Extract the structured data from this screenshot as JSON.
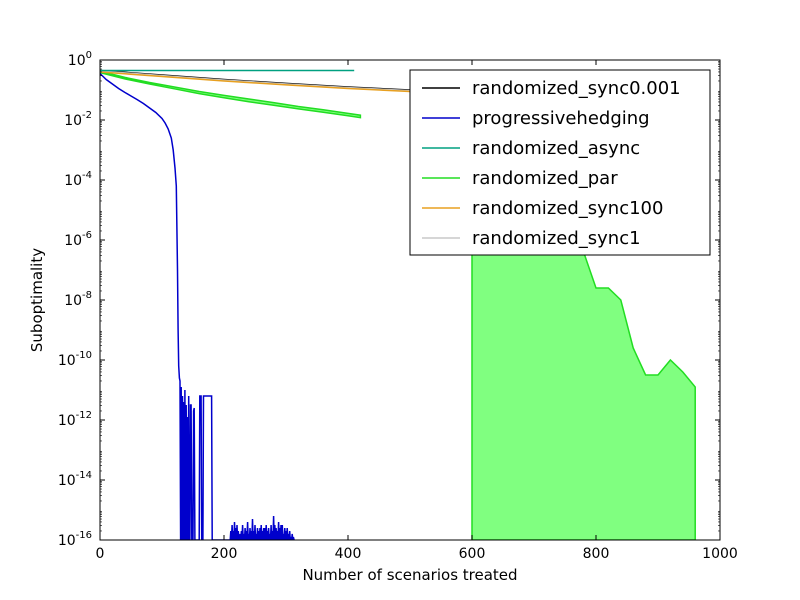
{
  "chart_data": {
    "type": "line",
    "xlabel": "Number of scenarios treated",
    "ylabel": "Suboptimality",
    "xlim": [
      0,
      1000
    ],
    "ylim_log10": [
      -16,
      0
    ],
    "yscale": "log",
    "grid": false,
    "legend_placement": "top-right",
    "x_ticks": [
      0,
      200,
      400,
      600,
      800,
      1000
    ],
    "x_tick_labels": [
      "0",
      "200",
      "400",
      "600",
      "800",
      "1000"
    ],
    "y_tick_exponents": [
      0,
      -2,
      -4,
      -6,
      -8,
      -10,
      -12,
      -14,
      -16
    ],
    "y_tick_base": "10",
    "y_tick_exp_labels": [
      "0",
      "-2",
      "-4",
      "-6",
      "-8",
      "-10",
      "-12",
      "-14",
      "-16"
    ],
    "legend": [
      {
        "label": "randomized_sync0.001",
        "color": "#000000"
      },
      {
        "label": "progressivehedging",
        "color": "#0000cc"
      },
      {
        "label": "randomized_async",
        "color": "#00a080"
      },
      {
        "label": "randomized_par",
        "color": "#22dd22"
      },
      {
        "label": "randomized_sync100",
        "color": "#e8a020"
      },
      {
        "label": "randomized_sync1",
        "color": "#c8c8c8"
      }
    ],
    "series": [
      {
        "name": "randomized_sync0.001",
        "color": "#000000",
        "x": [
          0,
          100,
          200,
          300,
          400,
          500
        ],
        "log10y": [
          -0.35,
          -0.5,
          -0.65,
          -0.78,
          -0.9,
          -1.0
        ]
      },
      {
        "name": "randomized_sync1",
        "color": "#c8c8c8",
        "x": [
          0,
          100,
          200,
          300,
          400,
          500
        ],
        "log10y": [
          -0.37,
          -0.52,
          -0.67,
          -0.8,
          -0.92,
          -1.02
        ]
      },
      {
        "name": "randomized_sync100",
        "color": "#e8a020",
        "x": [
          0,
          100,
          200,
          300,
          400,
          500
        ],
        "log10y": [
          -0.4,
          -0.55,
          -0.7,
          -0.83,
          -0.95,
          -1.05
        ]
      },
      {
        "name": "randomized_async",
        "color": "#00a080",
        "x": [
          0,
          410
        ],
        "log10y": [
          -0.35,
          -0.35
        ]
      },
      {
        "name": "progressivehedging",
        "color": "#0000cc",
        "x": [
          0,
          10,
          20,
          30,
          40,
          50,
          60,
          70,
          80,
          90,
          100,
          105,
          110,
          115,
          118,
          121,
          123,
          125,
          126,
          127,
          128,
          129,
          130,
          131,
          132,
          133,
          134,
          135,
          136,
          137,
          138,
          139,
          140,
          141,
          142,
          143,
          144,
          145,
          146,
          147,
          148,
          149,
          150,
          151,
          152,
          153,
          154,
          155,
          156,
          157,
          158,
          159,
          160,
          161,
          162,
          163,
          164,
          165,
          166,
          167,
          168,
          169,
          170,
          171,
          172,
          173,
          174,
          175,
          176,
          177,
          178,
          179,
          180,
          181,
          182,
          183,
          184,
          185,
          186,
          187,
          188,
          189,
          190,
          191,
          192,
          193,
          194,
          195,
          196,
          197,
          198,
          199,
          200,
          201,
          202,
          203,
          204,
          205,
          206,
          207,
          208,
          209,
          210,
          211,
          212,
          213,
          214,
          215,
          216,
          217,
          218,
          219,
          220,
          221,
          222,
          223,
          224,
          225,
          226,
          227,
          228,
          229,
          230,
          231,
          232,
          233,
          234,
          235,
          236,
          237,
          238,
          239,
          240,
          241,
          242,
          243,
          244,
          245,
          246,
          247,
          248,
          249,
          250,
          251,
          252,
          253,
          254,
          255,
          256,
          257,
          258,
          259,
          260,
          261,
          262,
          263,
          264,
          265,
          266,
          267,
          268,
          269,
          270,
          271,
          272,
          273,
          274,
          275,
          276,
          277,
          278,
          279,
          280,
          281,
          282,
          283,
          284,
          285,
          286,
          287,
          288,
          289,
          290,
          291,
          292,
          293,
          294,
          295,
          296,
          297,
          298,
          299,
          300,
          301,
          302,
          303,
          304,
          305,
          306,
          307,
          308,
          309,
          310,
          311,
          312,
          313,
          314,
          315,
          316
        ],
        "log10y": [
          -0.45,
          -0.65,
          -0.8,
          -0.95,
          -1.08,
          -1.2,
          -1.32,
          -1.45,
          -1.6,
          -1.75,
          -1.95,
          -2.1,
          -2.3,
          -2.6,
          -3.0,
          -3.6,
          -4.2,
          -7.0,
          -9.0,
          -10.2,
          -10.6,
          -10.7,
          -16,
          -10.9,
          -16,
          -11.2,
          -16,
          -11.4,
          -16,
          -11.0,
          -16,
          -11.5,
          -16,
          -11.9,
          -16,
          -11.2,
          -16,
          -16,
          -11.5,
          -11.5,
          -16,
          -16,
          -16,
          -11.7,
          -11.6,
          -16,
          -16,
          -16,
          -16,
          -16,
          -16,
          -16,
          -16,
          -11.2,
          -11.2,
          -11.2,
          -16,
          -16,
          -16,
          -11.2,
          -11.2,
          -11.2,
          -11.2,
          -11.2,
          -11.2,
          -11.2,
          -11.2,
          -11.2,
          -11.2,
          -11.2,
          -11.2,
          -11.2,
          -11.2,
          -16,
          -16,
          -16,
          -16,
          -16,
          -16,
          -16,
          -16,
          -16,
          -16,
          -16,
          -16,
          -16,
          -16,
          -16,
          -16,
          -16,
          -16,
          -16,
          -16,
          -16,
          -16,
          -16,
          -16,
          -16,
          -16,
          -16,
          -16,
          -16,
          -16,
          -15.7,
          -16,
          -15.5,
          -16,
          -15.7,
          -16,
          -15.4,
          -16,
          -15.6,
          -16,
          -15.5,
          -16,
          -15.7,
          -16,
          -16,
          -15.8,
          -16,
          -15.7,
          -16,
          -15.5,
          -16,
          -15.8,
          -16,
          -15.6,
          -16,
          -15.7,
          -16,
          -15.4,
          -16,
          -15.8,
          -16,
          -15.6,
          -16,
          -15.7,
          -16,
          -15.3,
          -16,
          -15.7,
          -16,
          -15.5,
          -16,
          -15.8,
          -16,
          -15.6,
          -16,
          -15.7,
          -16,
          -15.6,
          -16,
          -15.5,
          -16,
          -15.7,
          -16,
          -15.6,
          -16,
          -15.6,
          -16,
          -15.5,
          -16,
          -15.7,
          -16,
          -15.6,
          -16,
          -15.8,
          -16,
          -15.5,
          -16,
          -15.7,
          -16,
          -15.2,
          -16,
          -15.5,
          -16,
          -15.6,
          -16,
          -15.7,
          -16,
          -15.4,
          -16,
          -15.6,
          -16,
          -15.5,
          -16,
          -15.5,
          -16,
          -15.8,
          -16,
          -15.6,
          -16,
          -15.7,
          -16,
          -15.6,
          -16,
          -15.8,
          -16,
          -15.7,
          -16,
          -15.9,
          -16,
          -15.8,
          -16,
          -15.9,
          -16,
          -16
        ]
      }
    ],
    "bands": [
      {
        "name": "randomized_par",
        "color": "#22dd22",
        "fill": "#80ff80",
        "upper": {
          "x": [
            0,
            40,
            80,
            120,
            160,
            200,
            240,
            280,
            320,
            360,
            400,
            420
          ],
          "log10y": [
            -0.37,
            -0.58,
            -0.75,
            -0.9,
            -1.05,
            -1.18,
            -1.3,
            -1.42,
            -1.55,
            -1.66,
            -1.78,
            -1.84
          ]
        },
        "lower": {
          "x": [
            0,
            40,
            80,
            120,
            160,
            200,
            240,
            280,
            320,
            360,
            400,
            420
          ],
          "log10y": [
            -0.42,
            -0.63,
            -0.8,
            -0.96,
            -1.12,
            -1.26,
            -1.39,
            -1.51,
            -1.63,
            -1.74,
            -1.86,
            -1.92
          ]
        },
        "tail": {
          "x": [
            600,
            600,
            780,
            800,
            820,
            840,
            860,
            880,
            900,
            920,
            940,
            960,
            960
          ],
          "log10y": [
            -16,
            -6.4,
            -6.4,
            -7.6,
            -7.6,
            -8.0,
            -9.6,
            -10.5,
            -10.5,
            -10.0,
            -10.4,
            -10.9,
            -16
          ]
        }
      }
    ]
  }
}
